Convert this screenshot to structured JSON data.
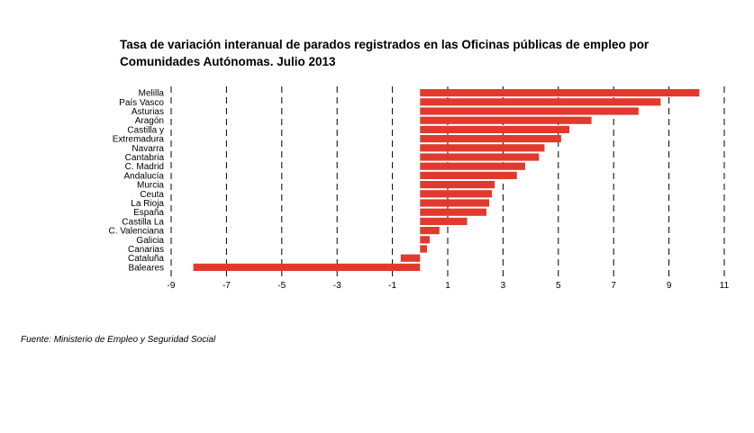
{
  "title_line1": "Tasa de variación interanual de parados registrados en las Oficinas públicas de empleo por",
  "title_line2": "Comunidades Autónomas.  Julio 2013",
  "source": "Fuente: Ministerio de Empleo y Seguridad Social",
  "colors": {
    "bar": "#e03a2e",
    "grid": "#000000"
  },
  "chart_data": {
    "type": "bar",
    "orientation": "horizontal",
    "title": "Tasa de variación interanual de parados registrados en las Oficinas públicas de empleo por Comunidades Autónomas.  Julio 2013",
    "categories": [
      "Melilla",
      "País Vasco",
      "Asturias",
      "Aragón",
      "Castilla y",
      "Extremadura",
      "Navarra",
      "Cantabria",
      "C. Madrid",
      "Andalucía",
      "Murcia",
      "Ceuta",
      "La Rioja",
      "España",
      "Castilla La",
      "C. Valenciana",
      "Galicia",
      "Canarias",
      "Cataluña",
      "Baleares"
    ],
    "values": [
      10.1,
      8.7,
      7.9,
      6.2,
      5.4,
      5.1,
      4.5,
      4.3,
      3.8,
      3.5,
      2.7,
      2.6,
      2.5,
      2.4,
      1.7,
      0.7,
      0.35,
      0.25,
      -0.7,
      -8.2
    ],
    "xlim": [
      -9,
      11
    ],
    "xticks": [
      -9,
      -7,
      -5,
      -3,
      -1,
      1,
      3,
      5,
      7,
      9,
      11
    ],
    "grid": "vertical dashed",
    "legend": "none"
  }
}
